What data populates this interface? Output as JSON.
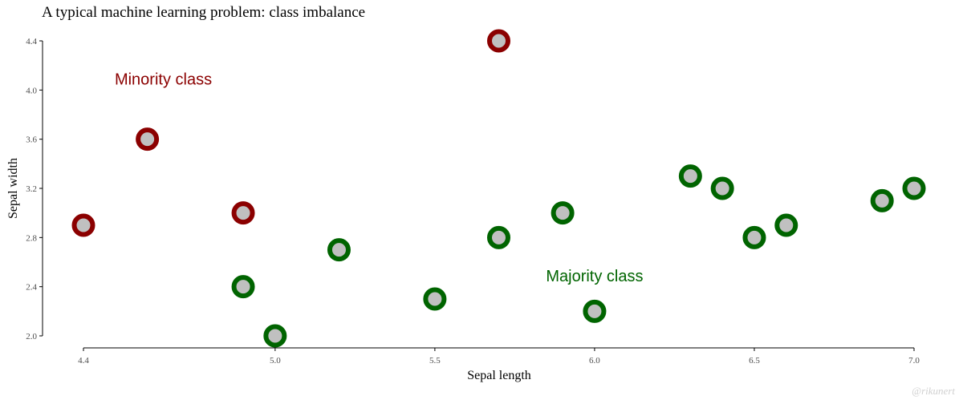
{
  "chart_data": {
    "type": "scatter",
    "title": "A typical machine learning problem: class imbalance",
    "xlabel": "Sepal length",
    "ylabel": "Sepal width",
    "xlim": [
      4.4,
      7.0
    ],
    "ylim": [
      2.0,
      4.4
    ],
    "x_ticks": [
      "4.4",
      "5.0",
      "5.5",
      "6.0",
      "6.5",
      "7.0"
    ],
    "y_ticks": [
      "2.0",
      "2.4",
      "2.8",
      "3.2",
      "3.6",
      "4.0",
      "4.4"
    ],
    "grid": false,
    "colors": {
      "minority": "#8b0000",
      "majority": "#006400",
      "point_fill": "#c0c0c0"
    },
    "series": [
      {
        "name": "Minority class",
        "color": "#8b0000",
        "points": [
          {
            "x": 4.4,
            "y": 2.9
          },
          {
            "x": 4.6,
            "y": 3.6
          },
          {
            "x": 4.9,
            "y": 3.0
          },
          {
            "x": 5.7,
            "y": 4.4
          }
        ]
      },
      {
        "name": "Majority class",
        "color": "#006400",
        "points": [
          {
            "x": 4.9,
            "y": 2.4
          },
          {
            "x": 5.0,
            "y": 2.0
          },
          {
            "x": 5.2,
            "y": 2.7
          },
          {
            "x": 5.5,
            "y": 2.3
          },
          {
            "x": 5.7,
            "y": 2.8
          },
          {
            "x": 5.9,
            "y": 3.0
          },
          {
            "x": 6.0,
            "y": 2.2
          },
          {
            "x": 6.3,
            "y": 3.3
          },
          {
            "x": 6.4,
            "y": 3.2
          },
          {
            "x": 6.5,
            "y": 2.8
          },
          {
            "x": 6.6,
            "y": 2.9
          },
          {
            "x": 6.9,
            "y": 3.1
          },
          {
            "x": 7.0,
            "y": 3.2
          }
        ]
      }
    ],
    "annotations": [
      {
        "text": "Minority class",
        "x": 4.65,
        "y": 4.09,
        "color": "#8b0000"
      },
      {
        "text": "Majority class",
        "x": 6.0,
        "y": 2.49,
        "color": "#006400"
      }
    ],
    "credit": "@rikunert"
  }
}
